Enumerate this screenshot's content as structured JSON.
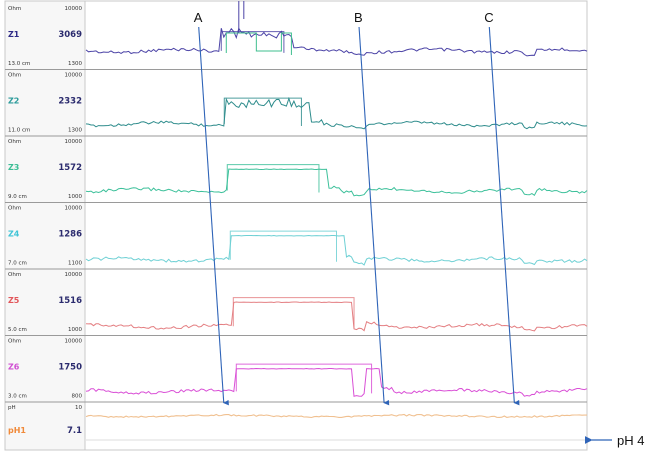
{
  "chart_data": {
    "type": "line",
    "x": {
      "min": 0,
      "max": 100
    },
    "channels": [
      {
        "name": "Z1",
        "unit": "Ohm",
        "value": "3069",
        "top": "10000",
        "bottom": "1300",
        "pos": "13.0 cm",
        "color": "#4b43a6",
        "nameColor": "#2e2a86",
        "baseline": 0.72,
        "events": [
          {
            "x": 29,
            "level": 0.45
          },
          {
            "x": 52,
            "level": 0.72,
            "dip": 0.82
          },
          {
            "x": 77,
            "level": 0.72,
            "dip": 0.85
          }
        ],
        "extra": "z1"
      },
      {
        "name": "Z2",
        "unit": "Ohm",
        "value": "2332",
        "top": "10000",
        "bottom": "1300",
        "pos": "11.0 cm",
        "color": "#2e8c8c",
        "nameColor": "#2b9b9b",
        "baseline": 0.82,
        "events": [
          {
            "x": 29,
            "level": 0.45
          },
          {
            "x": 52,
            "level": 0.82,
            "dip": 0.9
          },
          {
            "x": 77,
            "level": 0.86,
            "dip": 0.95
          }
        ],
        "extra": "z2"
      },
      {
        "name": "Z3",
        "unit": "Ohm",
        "value": "1572",
        "top": "10000",
        "bottom": "1000",
        "pos": "9.0 cm",
        "color": "#3cc09a",
        "nameColor": "#3bbd94",
        "baseline": 0.82,
        "events": [
          {
            "x": 29,
            "level": 0.45
          },
          {
            "x": 52,
            "level": 0.82,
            "dip": 0.93
          },
          {
            "x": 77,
            "level": 0.84,
            "dip": 0.92
          }
        ],
        "extra": "z3"
      },
      {
        "name": "Z4",
        "unit": "Ohm",
        "value": "1286",
        "top": "10000",
        "bottom": "1100",
        "pos": "7.0 cm",
        "color": "#6ed0d4",
        "nameColor": "#3fc4d6",
        "baseline": 0.86,
        "events": [
          {
            "x": 29,
            "level": 0.45
          },
          {
            "x": 52,
            "level": 0.82,
            "dip": 0.93
          },
          {
            "x": 77,
            "level": 0.82,
            "dip": 0.93
          }
        ],
        "extra": "z4"
      },
      {
        "name": "Z5",
        "unit": "Ohm",
        "value": "1516",
        "top": "10000",
        "bottom": "1000",
        "pos": "5.0 cm",
        "color": "#e47f82",
        "nameColor": "#e2565a",
        "baseline": 0.86,
        "events": [
          {
            "x": 29,
            "level": 0.45
          },
          {
            "x": 52,
            "level": 0.8,
            "dip": 0.9
          },
          {
            "x": 77,
            "level": 0.86,
            "dip": 0.96
          }
        ],
        "extra": "z5"
      },
      {
        "name": "Z6",
        "unit": "Ohm",
        "value": "1750",
        "top": "10000",
        "bottom": "800",
        "pos": "3.0 cm",
        "color": "#d94fd6",
        "nameColor": "#d04fd2",
        "baseline": 0.84,
        "events": [
          {
            "x": 29,
            "level": 0.45
          },
          {
            "x": 52,
            "level": 0.78,
            "dip": 0.86
          },
          {
            "x": 77,
            "level": 0.84,
            "dip": 0.92
          }
        ],
        "extra": "z6"
      }
    ],
    "ph": {
      "name": "pH1",
      "unit": "pH",
      "value": "7.1",
      "top": "10",
      "color": "#f0c090",
      "nameColor": "#f08a3a",
      "level": 0.35
    },
    "markers": [
      {
        "label": "A",
        "x_top": 22.5,
        "x_bottom": 27.5
      },
      {
        "label": "B",
        "x_top": 54.5,
        "x_bottom": 59.5
      },
      {
        "label": "C",
        "x_top": 80.5,
        "x_bottom": 85.5
      }
    ],
    "annotation": {
      "label": "pH 4"
    }
  }
}
